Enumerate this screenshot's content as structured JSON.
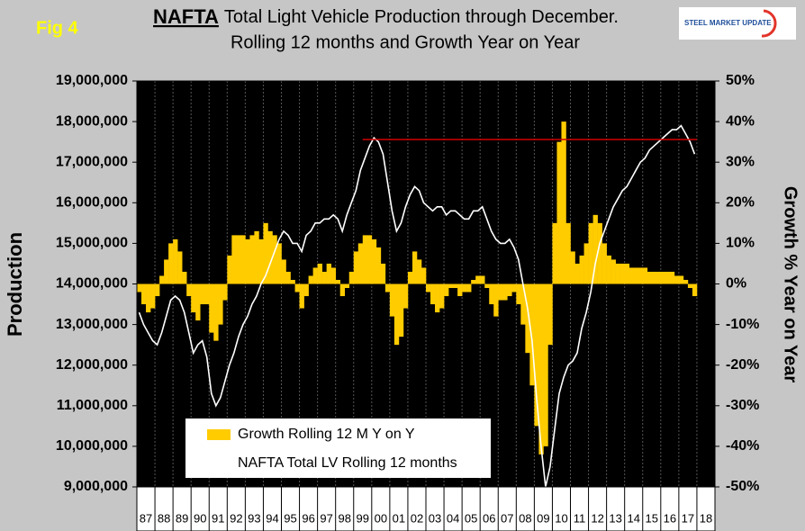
{
  "chart_data": {
    "type": "bar_line",
    "fig_label": "Fig 4",
    "title_highlight": "NAFTA",
    "title": "Total Light Vehicle Production through December.",
    "subtitle": "Rolling 12 months and Growth Year on Year",
    "logo": "STEEL MARKET UPDATE",
    "y_label": "Production",
    "y2_label": "Growth % Year on Year",
    "categories": [
      "87",
      "88",
      "89",
      "90",
      "91",
      "92",
      "93",
      "94",
      "95",
      "96",
      "97",
      "98",
      "99",
      "00",
      "01",
      "02",
      "03",
      "04",
      "05",
      "06",
      "07",
      "08",
      "09",
      "10",
      "11",
      "12",
      "13",
      "14",
      "15",
      "16",
      "17",
      "18"
    ],
    "ylim": [
      9000000,
      19000000
    ],
    "yticks": [
      {
        "value": 9000000,
        "label": "9,000,000"
      },
      {
        "value": 10000000,
        "label": "10,000,000"
      },
      {
        "value": 11000000,
        "label": "11,000,000"
      },
      {
        "value": 12000000,
        "label": "12,000,000"
      },
      {
        "value": 13000000,
        "label": "13,000,000"
      },
      {
        "value": 14000000,
        "label": "14,000,000"
      },
      {
        "value": 15000000,
        "label": "15,000,000"
      },
      {
        "value": 16000000,
        "label": "16,000,000"
      },
      {
        "value": 17000000,
        "label": "17,000,000"
      },
      {
        "value": 18000000,
        "label": "18,000,000"
      },
      {
        "value": 19000000,
        "label": "19,000,000"
      }
    ],
    "y2lim": [
      -50,
      50
    ],
    "y2ticks": [
      {
        "value": -50,
        "label": "-50%"
      },
      {
        "value": -40,
        "label": "-40%"
      },
      {
        "value": -30,
        "label": "-30%"
      },
      {
        "value": -20,
        "label": "-20%"
      },
      {
        "value": -10,
        "label": "-10%"
      },
      {
        "value": 0,
        "label": "0%"
      },
      {
        "value": 10,
        "label": "10%"
      },
      {
        "value": 20,
        "label": "20%"
      },
      {
        "value": 30,
        "label": "30%"
      },
      {
        "value": 40,
        "label": "40%"
      },
      {
        "value": 50,
        "label": "50%"
      }
    ],
    "reference_line": {
      "value": 17560000,
      "color": "#d00000"
    },
    "series": [
      {
        "name": "Growth Rolling 12 M Y on Y",
        "color": "#ffcc00",
        "axis": "y2",
        "kind": "bar",
        "values": [
          [
            -2,
            -5,
            -7,
            -6
          ],
          [
            -3,
            2,
            6,
            10
          ],
          [
            11,
            8,
            3,
            -3
          ],
          [
            -7,
            -9,
            -5,
            -5
          ],
          [
            -12,
            -14,
            -10,
            -4
          ],
          [
            7,
            12,
            12,
            12
          ],
          [
            11,
            12,
            13,
            11
          ],
          [
            15,
            13,
            12,
            10
          ],
          [
            6,
            3,
            1,
            -2
          ],
          [
            -6,
            -3,
            2,
            4
          ],
          [
            5,
            3,
            5,
            4
          ],
          [
            1,
            -3,
            -1,
            3
          ],
          [
            8,
            10,
            12,
            12
          ],
          [
            11,
            9,
            5,
            -2
          ],
          [
            -8,
            -15,
            -13,
            -6
          ],
          [
            3,
            8,
            6,
            4
          ],
          [
            -2,
            -5,
            -7,
            -6
          ],
          [
            -3,
            -1,
            -1,
            -3
          ],
          [
            -2,
            -2,
            1,
            2
          ],
          [
            2,
            -1,
            -5,
            -8
          ],
          [
            -4,
            -4,
            -3,
            -2
          ],
          [
            -5,
            -10,
            -17,
            -25
          ],
          [
            -35,
            -42,
            -40,
            -15
          ],
          [
            15,
            35,
            40,
            15
          ],
          [
            8,
            5,
            7,
            10
          ],
          [
            15,
            17,
            15,
            10
          ],
          [
            7,
            6,
            5,
            5
          ],
          [
            5,
            4,
            4,
            4
          ],
          [
            4,
            3,
            3,
            3
          ],
          [
            3,
            3,
            3,
            2
          ],
          [
            2,
            1,
            -1,
            -3
          ],
          null
        ]
      },
      {
        "name": "NAFTA Total LV Rolling 12 months",
        "color": "#ffffff",
        "axis": "y",
        "kind": "line",
        "values": [
          [
            13300000,
            13000000,
            12800000,
            12600000
          ],
          [
            12500000,
            12800000,
            13200000,
            13600000
          ],
          [
            13700000,
            13600000,
            13300000,
            12800000
          ],
          [
            12300000,
            12500000,
            12600000,
            12200000
          ],
          [
            11300000,
            11000000,
            11200000,
            11600000
          ],
          [
            12000000,
            12300000,
            12700000,
            13000000
          ],
          [
            13200000,
            13500000,
            13700000,
            14000000
          ],
          [
            14200000,
            14500000,
            14800000,
            15100000
          ],
          [
            15300000,
            15200000,
            15000000,
            15000000
          ],
          [
            14800000,
            15200000,
            15300000,
            15500000
          ],
          [
            15500000,
            15600000,
            15600000,
            15700000
          ],
          [
            15600000,
            15300000,
            15700000,
            16000000
          ],
          [
            16300000,
            16800000,
            17100000,
            17400000
          ],
          [
            17600000,
            17500000,
            17200000,
            16500000
          ],
          [
            15800000,
            15300000,
            15500000,
            15900000
          ],
          [
            16200000,
            16400000,
            16300000,
            16000000
          ],
          [
            15900000,
            15800000,
            15900000,
            15900000
          ],
          [
            15700000,
            15800000,
            15800000,
            15700000
          ],
          [
            15600000,
            15600000,
            15800000,
            15800000
          ],
          [
            15900000,
            15600000,
            15300000,
            15100000
          ],
          [
            15000000,
            15000000,
            15100000,
            14900000
          ],
          [
            14600000,
            14000000,
            13400000,
            12600000
          ],
          [
            11200000,
            10000000,
            9000000,
            9500000
          ],
          [
            10400000,
            11300000,
            11700000,
            12000000
          ],
          [
            12100000,
            12300000,
            12900000,
            13300000
          ],
          [
            13800000,
            14500000,
            15000000,
            15300000
          ],
          [
            15600000,
            15900000,
            16100000,
            16300000
          ],
          [
            16400000,
            16600000,
            16800000,
            17000000
          ],
          [
            17100000,
            17300000,
            17400000,
            17500000
          ],
          [
            17600000,
            17700000,
            17800000,
            17800000
          ],
          [
            17900000,
            17700000,
            17500000,
            17200000
          ],
          null
        ]
      }
    ]
  }
}
